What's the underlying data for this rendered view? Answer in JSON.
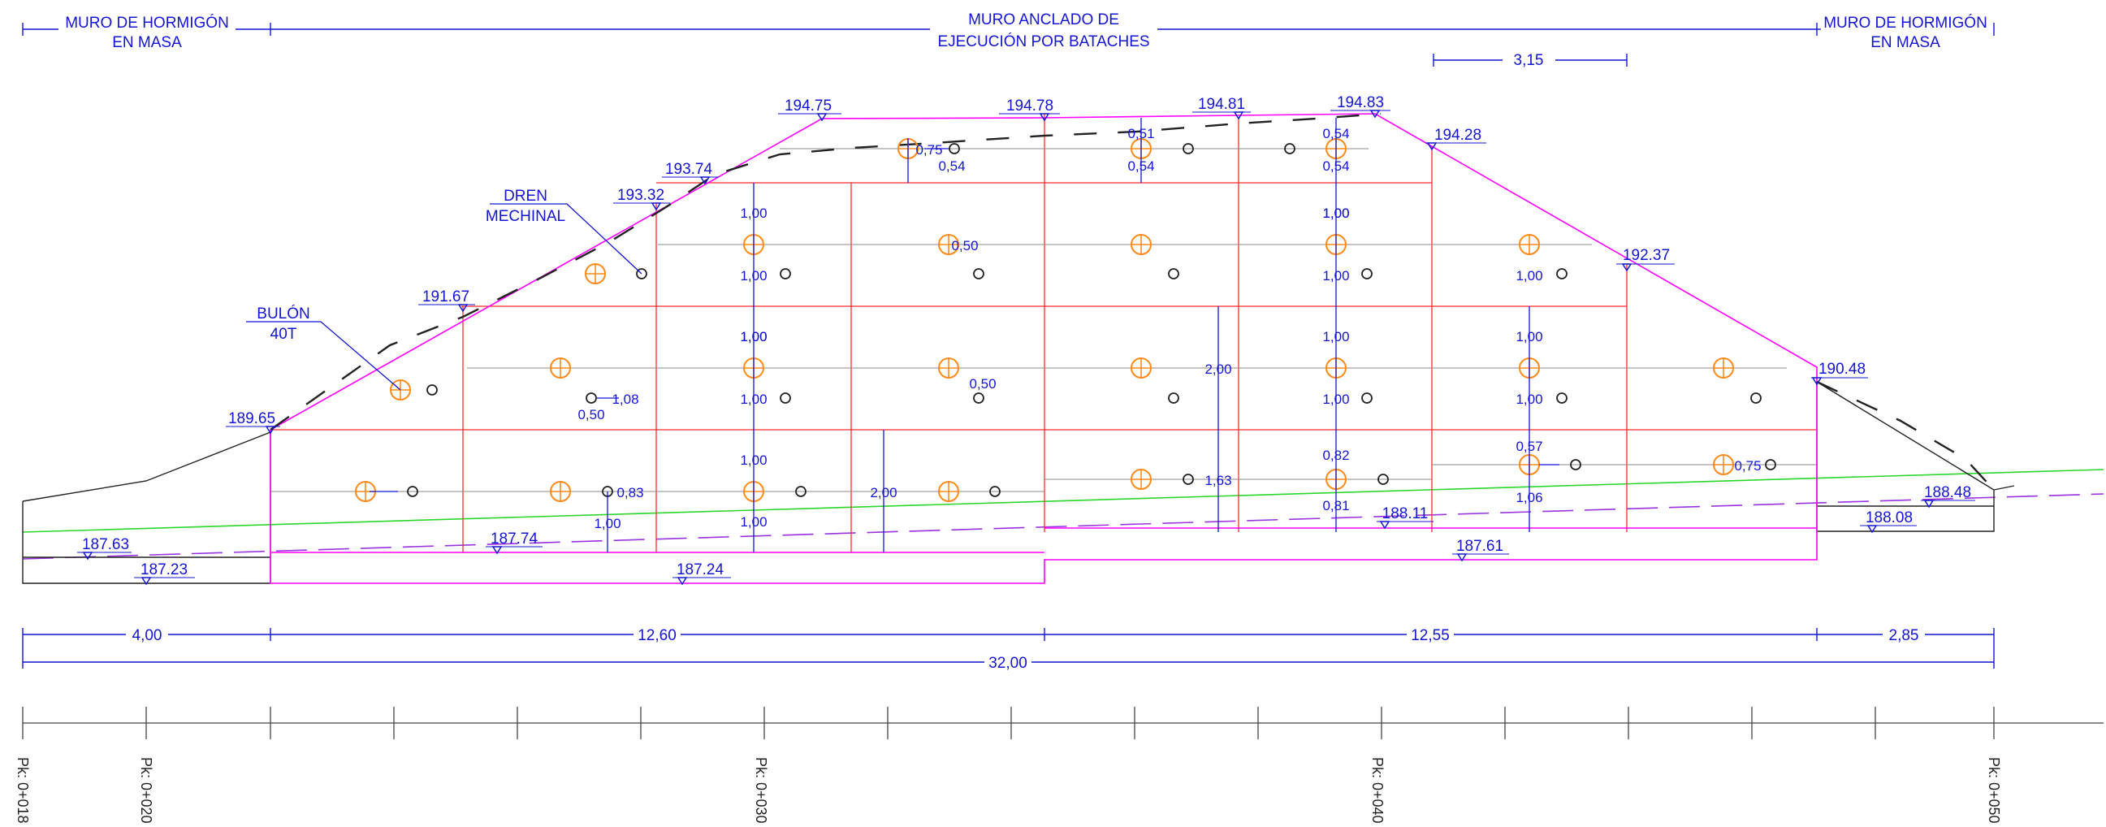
{
  "colors": {
    "dimension": "#1414d2",
    "wall_outline": "#ff00ff",
    "grid": "#ff2a2a",
    "terrain": "#222222",
    "ground_line": "#2bd62b",
    "dashed_line": "#9933dd",
    "anchor_symbol": "#ff8a1a",
    "drain_symbol": "#222222"
  },
  "headers": {
    "left": [
      "MURO DE HORMIGÓN",
      "EN MASA"
    ],
    "center": [
      "MURO ANCLADO DE",
      "EJECUCIÓN POR BATACHES"
    ],
    "right": [
      "MURO DE HORMIGÓN",
      "EN MASA"
    ]
  },
  "callouts": {
    "dren": [
      "DREN",
      "MECHINAL"
    ],
    "bulon": [
      "BULÓN",
      "40T"
    ]
  },
  "elevations": [
    "194.75",
    "194.78",
    "194.81",
    "194.83",
    "194.28",
    "193.74",
    "193.32",
    "192.37",
    "191.67",
    "190.48",
    "189.65",
    "188.48",
    "188.08",
    "188.11",
    "187.63",
    "187.23",
    "187.74",
    "187.24",
    "187.61"
  ],
  "spacing_labels": [
    "3,15",
    "0,75",
    "0,54",
    "0,51",
    "0,54",
    "0,54",
    "0,54",
    "1,00",
    "0,50",
    "1,00",
    "1,00",
    "1,00",
    "1,00",
    "1,00",
    "2,00",
    "1,00",
    "1,00",
    "1,08",
    "0,50",
    "0,50",
    "1,00",
    "1,00",
    "1,00",
    "1,00",
    "1,00",
    "1,00",
    "0,83",
    "2,00",
    "1,63",
    "0,82",
    "0,57",
    "0,75",
    "1,00",
    "1,00",
    "0,81",
    "1,06"
  ],
  "bottom_dimensions": [
    "4,00",
    "12,60",
    "12,55",
    "2,85",
    "32,00"
  ],
  "stations": [
    "Pk: 0+018",
    "Pk: 0+020",
    "Pk: 0+030",
    "Pk: 0+040",
    "Pk: 0+050"
  ]
}
